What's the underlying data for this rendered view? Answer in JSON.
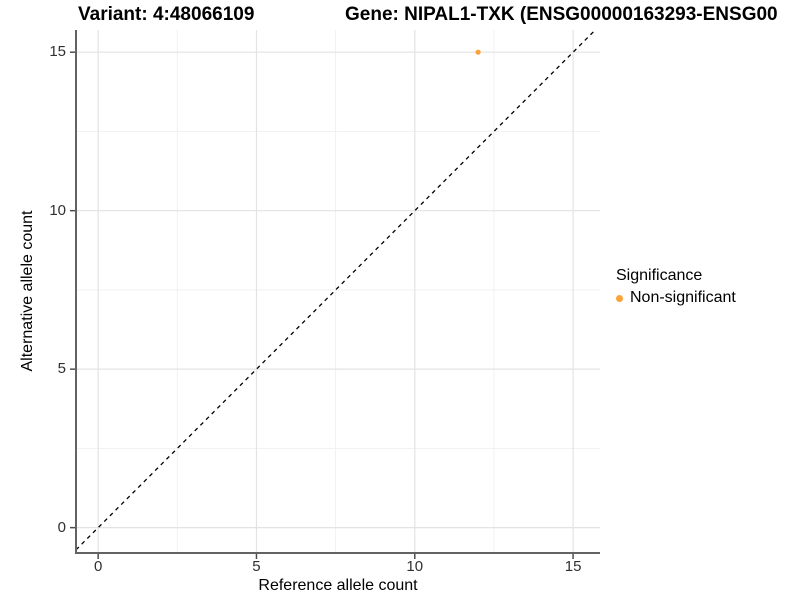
{
  "title": {
    "variant": "Variant: 4:48066109",
    "gene": "Gene: NIPAL1-TXK (ENSG00000163293-ENSG00"
  },
  "axes": {
    "x_label": "Reference allele count",
    "y_label": "Alternative allele count"
  },
  "legend": {
    "title": "Significance",
    "items": [
      {
        "label": "Non-significant",
        "color": "#FBA338"
      }
    ]
  },
  "chart_data": {
    "type": "scatter",
    "title": "Variant: 4:48066109   Gene: NIPAL1-TXK (ENSG00000163293-ENSG00",
    "xlabel": "Reference allele count",
    "ylabel": "Alternative allele count",
    "xlim": [
      -0.7,
      15.85
    ],
    "ylim": [
      -0.8,
      15.7
    ],
    "x_ticks": [
      0,
      5,
      10,
      15
    ],
    "y_ticks": [
      0,
      5,
      10,
      15
    ],
    "x_minor_ticks": [
      2.5,
      7.5,
      12.5
    ],
    "y_minor_ticks": [
      2.5,
      7.5,
      12.5
    ],
    "grid": true,
    "legend_position": "right",
    "series": [
      {
        "name": "Non-significant",
        "color": "#FBA338",
        "points": [
          {
            "x": 12,
            "y": 15
          }
        ]
      }
    ],
    "reference_line": {
      "type": "identity",
      "style": "dashed",
      "color": "#000000"
    }
  },
  "style_colors": {
    "grid_major": "#e3e3e3",
    "grid_minor": "#f1f1f1",
    "axis_line": "#636363",
    "tick_mark": "#4d4d4d"
  }
}
